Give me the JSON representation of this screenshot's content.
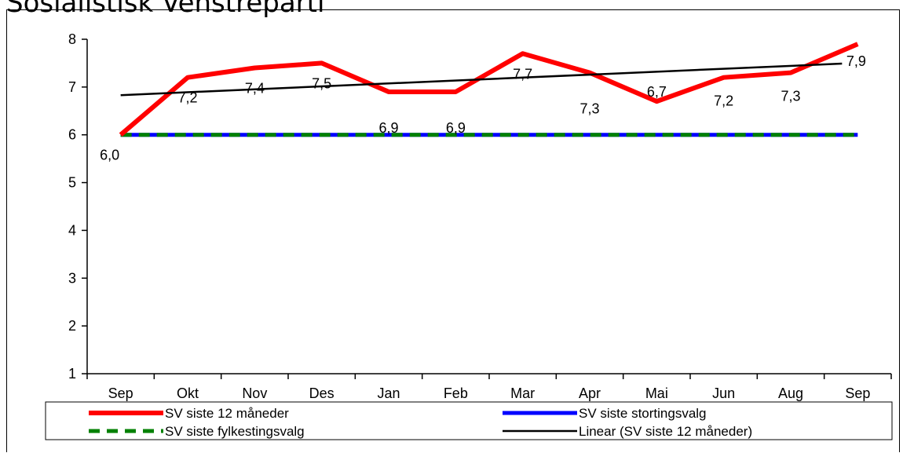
{
  "chart_data": {
    "type": "line",
    "title": "Sosialistisk Venstreparti",
    "categories": [
      "Sep",
      "Okt",
      "Nov",
      "Des",
      "Jan",
      "Feb",
      "Mar",
      "Apr",
      "Mai",
      "Jun",
      "Aug",
      "Sep"
    ],
    "ylim": [
      1,
      8
    ],
    "yticks": [
      1,
      2,
      3,
      4,
      5,
      6,
      7,
      8
    ],
    "grid": false,
    "legend_position": "bottom",
    "series": [
      {
        "name": "SV siste 12 måneder",
        "color": "#ff0000",
        "style": "solid",
        "values": [
          6.0,
          7.2,
          7.4,
          7.5,
          6.9,
          6.9,
          7.7,
          7.3,
          6.7,
          7.2,
          7.3,
          7.9
        ],
        "labels": [
          "6,0",
          "7,2",
          "7,4",
          "7,5",
          "6,9",
          "6,9",
          "7,7",
          "7,3",
          "6,7",
          "7,2",
          "7,3",
          "7,9"
        ]
      },
      {
        "name": "SV siste stortingsvalg",
        "color": "#0000ff",
        "style": "solid",
        "values": [
          6.0,
          6.0,
          6.0,
          6.0,
          6.0,
          6.0,
          6.0,
          6.0,
          6.0,
          6.0,
          6.0,
          6.0
        ]
      },
      {
        "name": "SV siste fylkestingsvalg",
        "color": "#008000",
        "style": "dashed",
        "values": [
          6.0,
          6.0,
          6.0,
          6.0,
          6.0,
          6.0,
          6.0,
          6.0,
          6.0,
          6.0,
          6.0,
          6.0
        ]
      },
      {
        "name": "Linear (SV siste 12 måneder)",
        "color": "#000000",
        "style": "solid",
        "values": [
          6.83,
          6.89,
          6.95,
          7.01,
          7.07,
          7.13,
          7.19,
          7.25,
          7.31,
          7.37,
          7.43,
          7.49
        ]
      }
    ]
  }
}
